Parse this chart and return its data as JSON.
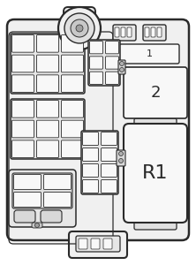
{
  "bg_color": "#ffffff",
  "lc": "#2a2a2a",
  "fc_main": "#f0f0f0",
  "fc_light": "#f8f8f8",
  "fc_mid": "#e0e0e0",
  "fc_dark": "#d0d0d0",
  "label_1": "1",
  "label_2": "2",
  "label_R1": "R1",
  "fig_width": 2.22,
  "fig_height": 3.0,
  "dpi": 100
}
